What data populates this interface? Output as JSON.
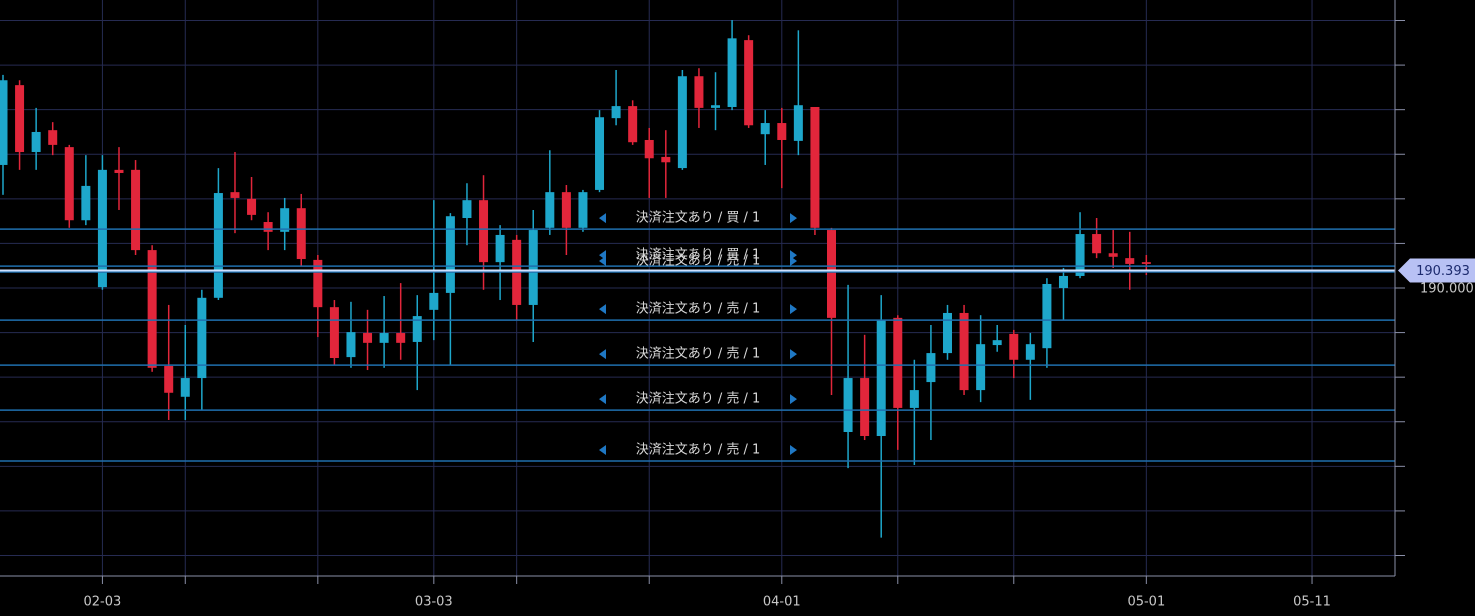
{
  "chart_data": {
    "type": "candlestick",
    "categories": [
      null,
      null,
      null,
      null,
      null,
      null,
      "02-03",
      null,
      null,
      null,
      null,
      null,
      null,
      null,
      null,
      null,
      null,
      null,
      null,
      null,
      null,
      null,
      null,
      null,
      null,
      null,
      "03-03",
      null,
      null,
      null,
      null,
      null,
      null,
      null,
      null,
      null,
      null,
      null,
      null,
      null,
      null,
      null,
      null,
      null,
      null,
      null,
      null,
      "04-01",
      null,
      null,
      null,
      null,
      null,
      null,
      null,
      null,
      null,
      null,
      null,
      null,
      null,
      null,
      null,
      null,
      null,
      null,
      null,
      null,
      null,
      "05-01",
      null,
      null,
      null,
      null,
      null,
      null,
      null,
      null,
      null,
      "05-11",
      null,
      null,
      null,
      null,
      null
    ],
    "open": [
      192.76,
      194.55,
      193.05,
      193.54,
      193.16,
      191.52,
      190.02,
      192.65,
      192.65,
      190.85,
      188.25,
      187.56,
      187.98,
      189.78,
      192.15,
      192.0,
      191.48,
      191.26,
      191.79,
      190.63,
      189.57,
      188.45,
      188.99,
      188.77,
      188.99,
      188.79,
      189.51,
      189.89,
      191.57,
      191.97,
      190.58,
      191.08,
      189.62,
      191.35,
      192.15,
      191.35,
      192.2,
      193.81,
      194.08,
      193.32,
      192.94,
      192.69,
      194.75,
      194.04,
      194.06,
      195.56,
      193.45,
      193.7,
      193.3,
      194.06,
      191.3,
      186.77,
      187.98,
      186.68,
      189.33,
      187.31,
      187.89,
      188.54,
      189.44,
      187.71,
      188.72,
      188.97,
      188.39,
      188.65,
      190.0,
      190.27,
      191.21,
      190.78,
      190.67,
      190.58,
      null,
      null,
      null,
      null,
      null,
      null,
      null,
      null,
      null,
      null,
      null,
      null,
      null,
      null,
      null
    ],
    "high": [
      194.78,
      194.66,
      194.04,
      193.72,
      193.21,
      192.98,
      192.98,
      193.16,
      192.87,
      190.96,
      189.62,
      189.17,
      189.96,
      192.69,
      193.05,
      192.49,
      191.7,
      192.02,
      192.11,
      190.74,
      189.73,
      189.69,
      189.51,
      189.82,
      190.11,
      189.84,
      191.97,
      191.68,
      192.35,
      192.53,
      191.41,
      191.19,
      191.75,
      193.09,
      192.31,
      192.2,
      193.99,
      194.89,
      194.21,
      193.59,
      193.54,
      194.89,
      194.93,
      194.84,
      196.01,
      195.67,
      193.99,
      194.04,
      195.78,
      194.06,
      191.35,
      190.07,
      188.95,
      189.84,
      189.39,
      188.39,
      189.17,
      189.62,
      189.62,
      189.39,
      189.17,
      189.06,
      188.99,
      190.22,
      190.45,
      191.7,
      191.57,
      191.3,
      191.26,
      190.74,
      null,
      null,
      null,
      null,
      null,
      null,
      null,
      null,
      null,
      null,
      null,
      null,
      null,
      null,
      null
    ],
    "low": [
      192.09,
      192.65,
      192.65,
      192.98,
      191.35,
      191.41,
      189.96,
      191.75,
      190.74,
      188.12,
      187.04,
      187.04,
      187.26,
      189.73,
      191.23,
      191.52,
      190.85,
      190.85,
      190.49,
      188.9,
      188.27,
      188.21,
      188.16,
      188.21,
      188.39,
      187.71,
      188.83,
      188.27,
      190.96,
      189.96,
      189.73,
      189.28,
      188.79,
      191.19,
      190.74,
      191.26,
      192.15,
      193.65,
      193.21,
      192.02,
      192.02,
      192.65,
      193.59,
      193.54,
      193.99,
      193.59,
      192.76,
      192.24,
      192.98,
      191.19,
      187.6,
      185.96,
      186.59,
      184.4,
      186.37,
      186.03,
      186.59,
      188.39,
      187.6,
      187.44,
      188.57,
      187.98,
      187.49,
      188.21,
      189.28,
      190.22,
      190.67,
      190.45,
      189.96,
      190.29,
      null,
      null,
      null,
      null,
      null,
      null,
      null,
      null,
      null,
      null,
      null,
      null,
      null,
      null,
      null
    ],
    "close": [
      194.66,
      193.05,
      193.5,
      193.21,
      191.52,
      192.29,
      192.65,
      192.58,
      190.85,
      188.21,
      187.65,
      187.98,
      189.78,
      192.13,
      192.02,
      191.64,
      191.26,
      191.79,
      190.65,
      189.57,
      188.43,
      189.01,
      188.77,
      188.99,
      188.77,
      189.37,
      189.89,
      191.61,
      191.97,
      190.58,
      191.19,
      189.62,
      191.3,
      192.15,
      191.35,
      192.15,
      193.83,
      194.08,
      193.27,
      192.91,
      192.82,
      194.75,
      194.04,
      194.1,
      195.6,
      193.65,
      193.7,
      193.32,
      194.1,
      191.35,
      189.33,
      187.98,
      186.68,
      189.28,
      187.31,
      187.71,
      188.54,
      189.44,
      187.71,
      188.74,
      188.83,
      188.39,
      188.74,
      190.09,
      190.27,
      191.21,
      190.78,
      190.7,
      190.54,
      190.54,
      null,
      null,
      null,
      null,
      null,
      null,
      null,
      null,
      null,
      null,
      null,
      null,
      null,
      null,
      null
    ],
    "minor_xticks": [
      11,
      19,
      31,
      39,
      54,
      61
    ],
    "ylim": [
      183.54,
      196.46
    ],
    "yticks": [
      {
        "value": 190,
        "label": "190.000"
      }
    ],
    "minor_yticks": [
      184,
      185,
      186,
      187,
      188,
      189,
      190,
      191,
      192,
      193,
      194,
      195,
      196
    ],
    "grid": true,
    "up_color": "#1ea7cb",
    "down_color": "#e2263b",
    "grid_color": "#262b52",
    "last_price": 190.393,
    "orders": [
      {
        "label": "決済注文あり / 買 / 1",
        "price": 191.32
      },
      {
        "label": "決済注文あり / 買 / 1",
        "price": 190.49
      },
      {
        "label": "決済注文あり / 売 / 1",
        "price": 190.36
      },
      {
        "label": "決済注文あり / 売 / 1",
        "price": 189.28
      },
      {
        "label": "決済注文あり / 売 / 1",
        "price": 188.27
      },
      {
        "label": "決済注文あり / 売 / 1",
        "price": 187.26
      },
      {
        "label": "決済注文あり / 売 / 1",
        "price": 186.12
      }
    ]
  }
}
